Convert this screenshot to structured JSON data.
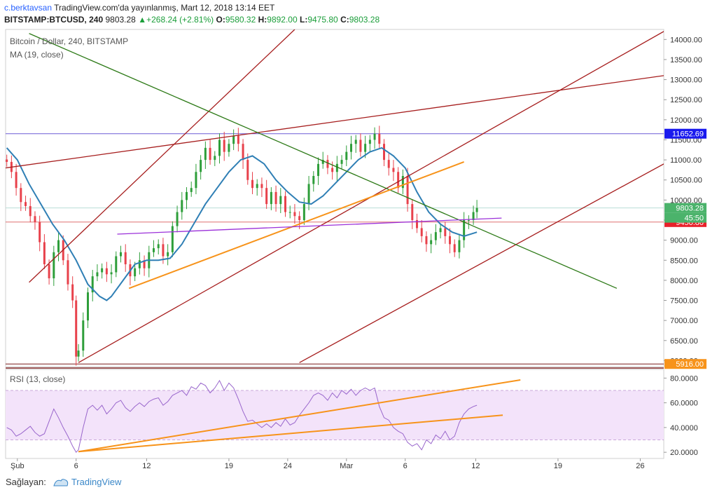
{
  "header": {
    "author": "c.berktavsan",
    "published": "TradingView.com'da yayınlanmış, Mart 12, 2018 13:14 EET",
    "symbol": "BITSTAMP:BTCUSD, 240",
    "last": "9803.28",
    "change": "+268.24 (+2.81%)",
    "open_label": "O:",
    "open": "9580.32",
    "high_label": "H:",
    "high": "9892.00",
    "low_label": "L:",
    "low": "9475.80",
    "close_label": "C:",
    "close": "9803.28"
  },
  "legend": {
    "title": "Bitcoin / Dollar, 240, BITSTAMP",
    "ma": "MA (19, close)",
    "rsi": "RSI (13, close)"
  },
  "footer": {
    "label": "Sağlayan:",
    "brand": "TradingView"
  },
  "colors": {
    "up": "#2e9e3a",
    "down": "#e8414b",
    "ma": "#2f7fb5",
    "channel": "#a61d1d",
    "trend_green": "#2d7a17",
    "orange": "#f7931a",
    "purple": "#9b30d9",
    "rsi_line": "#9966cc",
    "rsi_band": "#f3e3fa",
    "hline_blue": "#6b5bd6",
    "hline_red": "#e07070"
  },
  "chart_data": [
    {
      "type": "candlestick",
      "title": "Bitcoin / Dollar, 240, BITSTAMP",
      "x_ticks": [
        {
          "day": 1,
          "label": "Şub"
        },
        {
          "day": 6,
          "label": "6"
        },
        {
          "day": 12,
          "label": "12"
        },
        {
          "day": 19,
          "label": "19"
        },
        {
          "day": 24,
          "label": "24"
        },
        {
          "day": 29,
          "label": "Mar"
        },
        {
          "day": 34,
          "label": "6"
        },
        {
          "day": 40,
          "label": "12"
        },
        {
          "day": 47,
          "label": "19"
        },
        {
          "day": 54,
          "label": "26"
        }
      ],
      "ylim": [
        5850,
        14250
      ],
      "y_ticks": [
        6000,
        6500,
        7000,
        7500,
        8000,
        8500,
        9000,
        9500,
        10000,
        10500,
        11000,
        11500,
        12000,
        12500,
        13000,
        13500,
        14000
      ],
      "y_tick_labels": [
        "6000.00",
        "6500.00",
        "7000.00",
        "7500.00",
        "8000.00",
        "8500.00",
        "9000.00",
        "9500.00",
        "10000.00",
        "10500.00",
        "11000.00",
        "11500.00",
        "12000.00",
        "12500.00",
        "13000.00",
        "13500.00",
        "14000.00"
      ],
      "close_series": [
        [
          0.1,
          10950
        ],
        [
          0.5,
          10700
        ],
        [
          0.9,
          10300
        ],
        [
          1.3,
          9950
        ],
        [
          1.7,
          9850
        ],
        [
          2.1,
          9600
        ],
        [
          2.5,
          9450
        ],
        [
          2.9,
          8950
        ],
        [
          3.3,
          8400
        ],
        [
          3.7,
          8050
        ],
        [
          4.1,
          8700
        ],
        [
          4.5,
          9000
        ],
        [
          4.9,
          8500
        ],
        [
          5.3,
          7900
        ],
        [
          5.7,
          7500
        ],
        [
          6.0,
          6100
        ],
        [
          6.2,
          6250
        ],
        [
          6.6,
          7000
        ],
        [
          7.0,
          7700
        ],
        [
          7.4,
          8100
        ],
        [
          7.8,
          8200
        ],
        [
          8.2,
          8300
        ],
        [
          8.6,
          8150
        ],
        [
          9.0,
          8200
        ],
        [
          9.4,
          8600
        ],
        [
          9.8,
          8700
        ],
        [
          10.2,
          8400
        ],
        [
          10.6,
          8100
        ],
        [
          11.0,
          8300
        ],
        [
          11.4,
          8500
        ],
        [
          11.8,
          8300
        ],
        [
          12.2,
          8700
        ],
        [
          12.6,
          8800
        ],
        [
          13.0,
          8900
        ],
        [
          13.4,
          8600
        ],
        [
          13.8,
          8700
        ],
        [
          14.2,
          9350
        ],
        [
          14.6,
          9700
        ],
        [
          15.0,
          10000
        ],
        [
          15.4,
          10200
        ],
        [
          15.8,
          10300
        ],
        [
          16.2,
          10700
        ],
        [
          16.6,
          11000
        ],
        [
          17.0,
          11300
        ],
        [
          17.4,
          11000
        ],
        [
          17.8,
          11100
        ],
        [
          18.2,
          11500
        ],
        [
          18.6,
          11200
        ],
        [
          19.0,
          11400
        ],
        [
          19.4,
          11600
        ],
        [
          19.8,
          11400
        ],
        [
          20.2,
          11000
        ],
        [
          20.6,
          10500
        ],
        [
          21.0,
          10300
        ],
        [
          21.4,
          10400
        ],
        [
          21.8,
          10300
        ],
        [
          22.2,
          9900
        ],
        [
          22.6,
          10200
        ],
        [
          23.0,
          9900
        ],
        [
          23.4,
          10100
        ],
        [
          23.8,
          9700
        ],
        [
          24.2,
          9700
        ],
        [
          24.6,
          9600
        ],
        [
          25.0,
          9500
        ],
        [
          25.4,
          9900
        ],
        [
          25.8,
          10400
        ],
        [
          26.2,
          10600
        ],
        [
          26.6,
          10900
        ],
        [
          27.0,
          11000
        ],
        [
          27.4,
          10800
        ],
        [
          27.8,
          10700
        ],
        [
          28.2,
          10900
        ],
        [
          28.6,
          11000
        ],
        [
          29.0,
          11200
        ],
        [
          29.4,
          11400
        ],
        [
          29.8,
          11500
        ],
        [
          30.2,
          11200
        ],
        [
          30.6,
          11400
        ],
        [
          31.0,
          11500
        ],
        [
          31.4,
          11650
        ],
        [
          31.8,
          11400
        ],
        [
          32.2,
          11000
        ],
        [
          32.6,
          10800
        ],
        [
          33.0,
          10700
        ],
        [
          33.4,
          10300
        ],
        [
          33.8,
          10600
        ],
        [
          34.2,
          9900
        ],
        [
          34.6,
          9500
        ],
        [
          35.0,
          9300
        ],
        [
          35.4,
          9100
        ],
        [
          35.8,
          8900
        ],
        [
          36.2,
          9000
        ],
        [
          36.6,
          9200
        ],
        [
          37.0,
          9300
        ],
        [
          37.4,
          9100
        ],
        [
          37.8,
          8900
        ],
        [
          38.2,
          8700
        ],
        [
          38.6,
          9000
        ],
        [
          39.0,
          9500
        ],
        [
          39.4,
          9500
        ],
        [
          39.8,
          9700
        ],
        [
          40.1,
          9803.28
        ]
      ],
      "ma19": [
        [
          0.1,
          11300
        ],
        [
          1,
          11000
        ],
        [
          2,
          10400
        ],
        [
          3,
          9900
        ],
        [
          4,
          9400
        ],
        [
          5,
          9000
        ],
        [
          6,
          8500
        ],
        [
          7,
          7900
        ],
        [
          8,
          7600
        ],
        [
          8.6,
          7500
        ],
        [
          9,
          7600
        ],
        [
          10,
          8000
        ],
        [
          11,
          8400
        ],
        [
          12,
          8500
        ],
        [
          13,
          8500
        ],
        [
          14,
          8550
        ],
        [
          15,
          8900
        ],
        [
          16,
          9400
        ],
        [
          17,
          9900
        ],
        [
          18,
          10300
        ],
        [
          19,
          10700
        ],
        [
          20,
          11000
        ],
        [
          21,
          11100
        ],
        [
          22,
          10900
        ],
        [
          23,
          10500
        ],
        [
          24,
          10200
        ],
        [
          25,
          9950
        ],
        [
          26,
          9900
        ],
        [
          27,
          10100
        ],
        [
          28,
          10400
        ],
        [
          29,
          10700
        ],
        [
          30,
          11000
        ],
        [
          31,
          11200
        ],
        [
          32,
          11300
        ],
        [
          33,
          11100
        ],
        [
          34,
          10800
        ],
        [
          35,
          10200
        ],
        [
          36,
          9700
        ],
        [
          37,
          9400
        ],
        [
          38,
          9200
        ],
        [
          39,
          9100
        ],
        [
          40.1,
          9200
        ]
      ],
      "horizontal_lines": [
        {
          "value": 11652.69,
          "label": "11652.69",
          "label_color": "#1a1aee"
        },
        {
          "value": 9450.8,
          "label": "9450.80",
          "label_color": "#e8212a"
        },
        {
          "value": 9803.28,
          "label": "9803.28",
          "label_color": "#4bb36b"
        },
        {
          "value": 5916.0,
          "label": "5916.00",
          "label_color": "#f7931a"
        }
      ],
      "countdown_label": "45:50",
      "trendlines": [
        {
          "color": "#a61d1d",
          "from": [
            0,
            10800
          ],
          "to": [
            56,
            13100
          ]
        },
        {
          "color": "#a61d1d",
          "from": [
            2,
            7950
          ],
          "to": [
            24.6,
            14250
          ]
        },
        {
          "color": "#a61d1d",
          "from": [
            6.2,
            5950
          ],
          "to": [
            56,
            14200
          ]
        },
        {
          "color": "#a61d1d",
          "from": [
            25,
            5950
          ],
          "to": [
            56,
            10900
          ]
        },
        {
          "color": "#2d7a17",
          "from": [
            2,
            14150
          ],
          "to": [
            52,
            7800
          ]
        },
        {
          "color": "#f7931a",
          "from": [
            10.5,
            7800
          ],
          "to": [
            39,
            10950
          ]
        },
        {
          "color": "#9b30d9",
          "from": [
            9.5,
            9150
          ],
          "to": [
            42.2,
            9550
          ]
        }
      ]
    },
    {
      "type": "line",
      "title": "RSI (13, close)",
      "ylim": [
        15,
        87
      ],
      "y_ticks": [
        20,
        40,
        60,
        80
      ],
      "y_tick_labels": [
        "20.0000",
        "40.0000",
        "60.0000",
        "80.0000"
      ],
      "band": [
        30,
        70
      ],
      "series": [
        [
          0.1,
          40
        ],
        [
          0.5,
          38
        ],
        [
          0.9,
          33
        ],
        [
          1.3,
          35
        ],
        [
          1.7,
          38
        ],
        [
          2.1,
          41
        ],
        [
          2.5,
          36
        ],
        [
          2.9,
          33
        ],
        [
          3.3,
          35
        ],
        [
          3.7,
          45
        ],
        [
          4.1,
          55
        ],
        [
          4.5,
          48
        ],
        [
          4.9,
          40
        ],
        [
          5.3,
          33
        ],
        [
          5.7,
          25
        ],
        [
          6.0,
          20
        ],
        [
          6.2,
          22
        ],
        [
          6.6,
          40
        ],
        [
          7.0,
          55
        ],
        [
          7.4,
          58
        ],
        [
          7.8,
          54
        ],
        [
          8.2,
          58
        ],
        [
          8.6,
          51
        ],
        [
          9.0,
          55
        ],
        [
          9.4,
          60
        ],
        [
          9.8,
          62
        ],
        [
          10.2,
          56
        ],
        [
          10.6,
          53
        ],
        [
          11.0,
          57
        ],
        [
          11.4,
          60
        ],
        [
          11.8,
          57
        ],
        [
          12.2,
          61
        ],
        [
          12.6,
          63
        ],
        [
          13.0,
          64
        ],
        [
          13.4,
          58
        ],
        [
          13.8,
          61
        ],
        [
          14.2,
          66
        ],
        [
          14.6,
          68
        ],
        [
          15.0,
          70
        ],
        [
          15.4,
          66
        ],
        [
          15.8,
          73
        ],
        [
          16.2,
          71
        ],
        [
          16.6,
          76
        ],
        [
          17.0,
          74
        ],
        [
          17.4,
          68
        ],
        [
          17.8,
          72
        ],
        [
          18.2,
          78
        ],
        [
          18.6,
          70
        ],
        [
          19.0,
          76
        ],
        [
          19.4,
          72
        ],
        [
          19.8,
          63
        ],
        [
          20.2,
          53
        ],
        [
          20.6,
          45
        ],
        [
          21.0,
          46
        ],
        [
          21.4,
          43
        ],
        [
          21.8,
          40
        ],
        [
          22.2,
          43
        ],
        [
          22.6,
          40
        ],
        [
          23.0,
          44
        ],
        [
          23.4,
          41
        ],
        [
          23.8,
          47
        ],
        [
          24.2,
          42
        ],
        [
          24.6,
          44
        ],
        [
          25.0,
          50
        ],
        [
          25.4,
          55
        ],
        [
          25.8,
          60
        ],
        [
          26.2,
          66
        ],
        [
          26.6,
          68
        ],
        [
          27.0,
          66
        ],
        [
          27.4,
          62
        ],
        [
          27.8,
          68
        ],
        [
          28.2,
          64
        ],
        [
          28.6,
          70
        ],
        [
          29.0,
          67
        ],
        [
          29.4,
          71
        ],
        [
          29.8,
          66
        ],
        [
          30.2,
          70
        ],
        [
          30.6,
          72
        ],
        [
          31.0,
          70
        ],
        [
          31.4,
          72
        ],
        [
          31.8,
          57
        ],
        [
          32.2,
          48
        ],
        [
          32.6,
          46
        ],
        [
          33.0,
          40
        ],
        [
          33.4,
          37
        ],
        [
          33.8,
          35
        ],
        [
          34.2,
          28
        ],
        [
          34.6,
          25
        ],
        [
          35.0,
          27
        ],
        [
          35.4,
          22
        ],
        [
          35.8,
          30
        ],
        [
          36.2,
          27
        ],
        [
          36.6,
          34
        ],
        [
          37.0,
          31
        ],
        [
          37.4,
          37
        ],
        [
          37.8,
          30
        ],
        [
          38.2,
          33
        ],
        [
          38.6,
          44
        ],
        [
          39.0,
          51
        ],
        [
          39.4,
          55
        ],
        [
          39.8,
          57
        ],
        [
          40.1,
          58
        ]
      ],
      "trendlines": [
        {
          "color": "#f7931a",
          "from": [
            6.2,
            20.5
          ],
          "to": [
            43.8,
            78.5
          ]
        },
        {
          "color": "#f7931a",
          "from": [
            6.2,
            20.5
          ],
          "to": [
            42.3,
            50.0
          ]
        }
      ]
    }
  ]
}
